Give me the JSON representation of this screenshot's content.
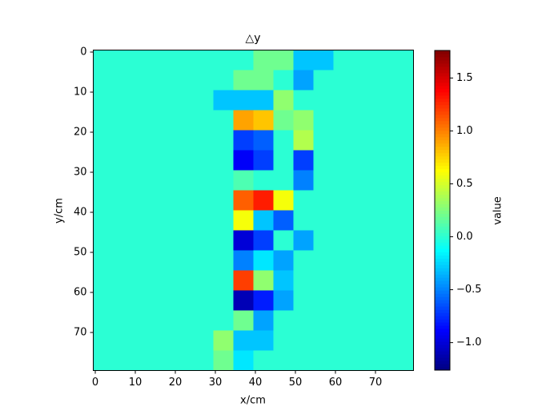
{
  "chart_data": {
    "type": "heatmap",
    "title": "△y",
    "x_label": "x/cm",
    "y_label": "y/cm",
    "colorbar_label": "value",
    "colormap": "jet",
    "xlim": [
      -0.5,
      79.5
    ],
    "ylim": [
      79.5,
      -0.5
    ],
    "xticks": [
      0,
      10,
      20,
      30,
      40,
      50,
      60,
      70
    ],
    "yticks": [
      0,
      10,
      20,
      30,
      40,
      50,
      60,
      70
    ],
    "clim": [
      -1.26,
      1.76
    ],
    "cticks": [
      {
        "value": -1.0,
        "label": "−1.0"
      },
      {
        "value": -0.5,
        "label": "−0.5"
      },
      {
        "value": 0,
        "label": "0.0"
      },
      {
        "value": 0.5,
        "label": "0.5"
      },
      {
        "value": 1.0,
        "label": "1.0"
      },
      {
        "value": 1.5,
        "label": "1.5"
      }
    ],
    "z": [
      [
        0,
        0,
        0,
        0,
        0,
        0,
        0,
        0,
        0.2,
        0.2,
        -0.3,
        -0.3,
        0,
        0,
        0,
        0
      ],
      [
        0,
        0,
        0,
        0,
        0,
        0,
        0,
        0.2,
        0.2,
        0,
        -0.4,
        0,
        0,
        0,
        0,
        0
      ],
      [
        0,
        0,
        0,
        0,
        0,
        0,
        -0.3,
        -0.3,
        -0.3,
        0.3,
        0,
        0,
        0,
        0,
        0,
        0
      ],
      [
        0,
        0,
        0,
        0,
        0,
        0,
        0,
        0.9,
        0.8,
        0.2,
        0.3,
        0,
        0,
        0,
        0,
        0
      ],
      [
        0,
        0,
        0,
        0,
        0,
        0,
        0,
        -0.7,
        -0.6,
        0,
        0.4,
        0,
        0,
        0,
        0,
        0
      ],
      [
        0,
        0,
        0,
        0,
        0,
        0,
        0,
        -0.9,
        -0.7,
        0,
        -0.7,
        0,
        0,
        0,
        0,
        0
      ],
      [
        0,
        0,
        0,
        0,
        0,
        0,
        0,
        0.1,
        0,
        0,
        -0.5,
        0,
        0,
        0,
        0,
        0
      ],
      [
        0,
        0,
        0,
        0,
        0,
        0,
        0,
        1.1,
        1.3,
        0.6,
        0,
        0,
        0,
        0,
        0,
        0
      ],
      [
        0,
        0,
        0,
        0,
        0,
        0,
        0,
        0.6,
        -0.3,
        -0.6,
        0,
        0,
        0,
        0,
        0,
        0
      ],
      [
        0,
        0,
        0,
        0,
        0,
        0,
        0,
        -1.0,
        -0.7,
        0,
        -0.4,
        0,
        0,
        0,
        0,
        0
      ],
      [
        0,
        0,
        0,
        0,
        0,
        0,
        0,
        -0.5,
        -0.2,
        -0.4,
        0,
        0,
        0,
        0,
        0,
        0
      ],
      [
        0,
        0,
        0,
        0,
        0,
        0,
        0,
        1.2,
        0.3,
        -0.3,
        0,
        0,
        0,
        0,
        0,
        0
      ],
      [
        0,
        0,
        0,
        0,
        0,
        0,
        0,
        -1.1,
        -0.8,
        -0.4,
        0,
        0,
        0,
        0,
        0,
        0
      ],
      [
        0,
        0,
        0,
        0,
        0,
        0,
        0,
        0.2,
        -0.4,
        0,
        0,
        0,
        0,
        0,
        0,
        0
      ],
      [
        0,
        0,
        0,
        0,
        0,
        0,
        0.3,
        -0.3,
        -0.3,
        0,
        0,
        0,
        0,
        0,
        0,
        0
      ],
      [
        0,
        0,
        0,
        0,
        0,
        0,
        0.2,
        -0.2,
        0,
        0,
        0,
        0,
        0,
        0,
        0,
        0
      ]
    ]
  }
}
